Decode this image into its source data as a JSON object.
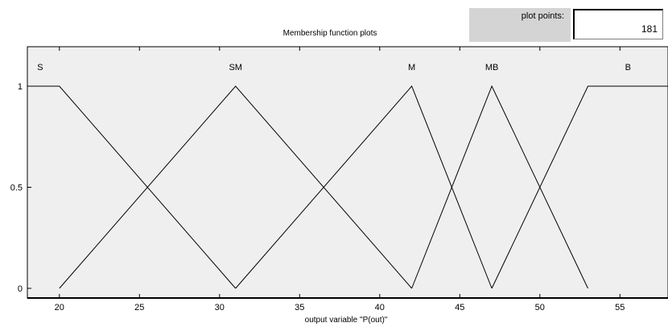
{
  "title": "Membership function plots",
  "plot_points": {
    "label": "plot points:",
    "value": "181"
  },
  "xlabel": "output variable \"P(out)\"",
  "colors": {
    "plot_bg": "#efefef",
    "panel_bg": "#d4d4d4",
    "line": "#000000"
  },
  "chart_data": {
    "type": "line",
    "xlim": [
      18,
      58
    ],
    "ylim": [
      0,
      1
    ],
    "xticks": [
      20,
      25,
      30,
      35,
      40,
      45,
      50,
      55
    ],
    "yticks": [
      0,
      0.5,
      1
    ],
    "ytick_labels": [
      "0",
      "0.5",
      "1"
    ],
    "series": [
      {
        "name": "S",
        "x": [
          18,
          20,
          31
        ],
        "y": [
          1,
          1,
          0
        ]
      },
      {
        "name": "SM",
        "x": [
          20,
          31,
          42
        ],
        "y": [
          0,
          1,
          0
        ]
      },
      {
        "name": "M",
        "x": [
          31,
          42,
          47
        ],
        "y": [
          0,
          1,
          0
        ]
      },
      {
        "name": "MB",
        "x": [
          42,
          47,
          53
        ],
        "y": [
          0,
          1,
          0
        ]
      },
      {
        "name": "B",
        "x": [
          47,
          53,
          58
        ],
        "y": [
          0,
          1,
          1
        ]
      }
    ],
    "label_positions_x": [
      18.8,
      31,
      42,
      47,
      55.5
    ]
  }
}
